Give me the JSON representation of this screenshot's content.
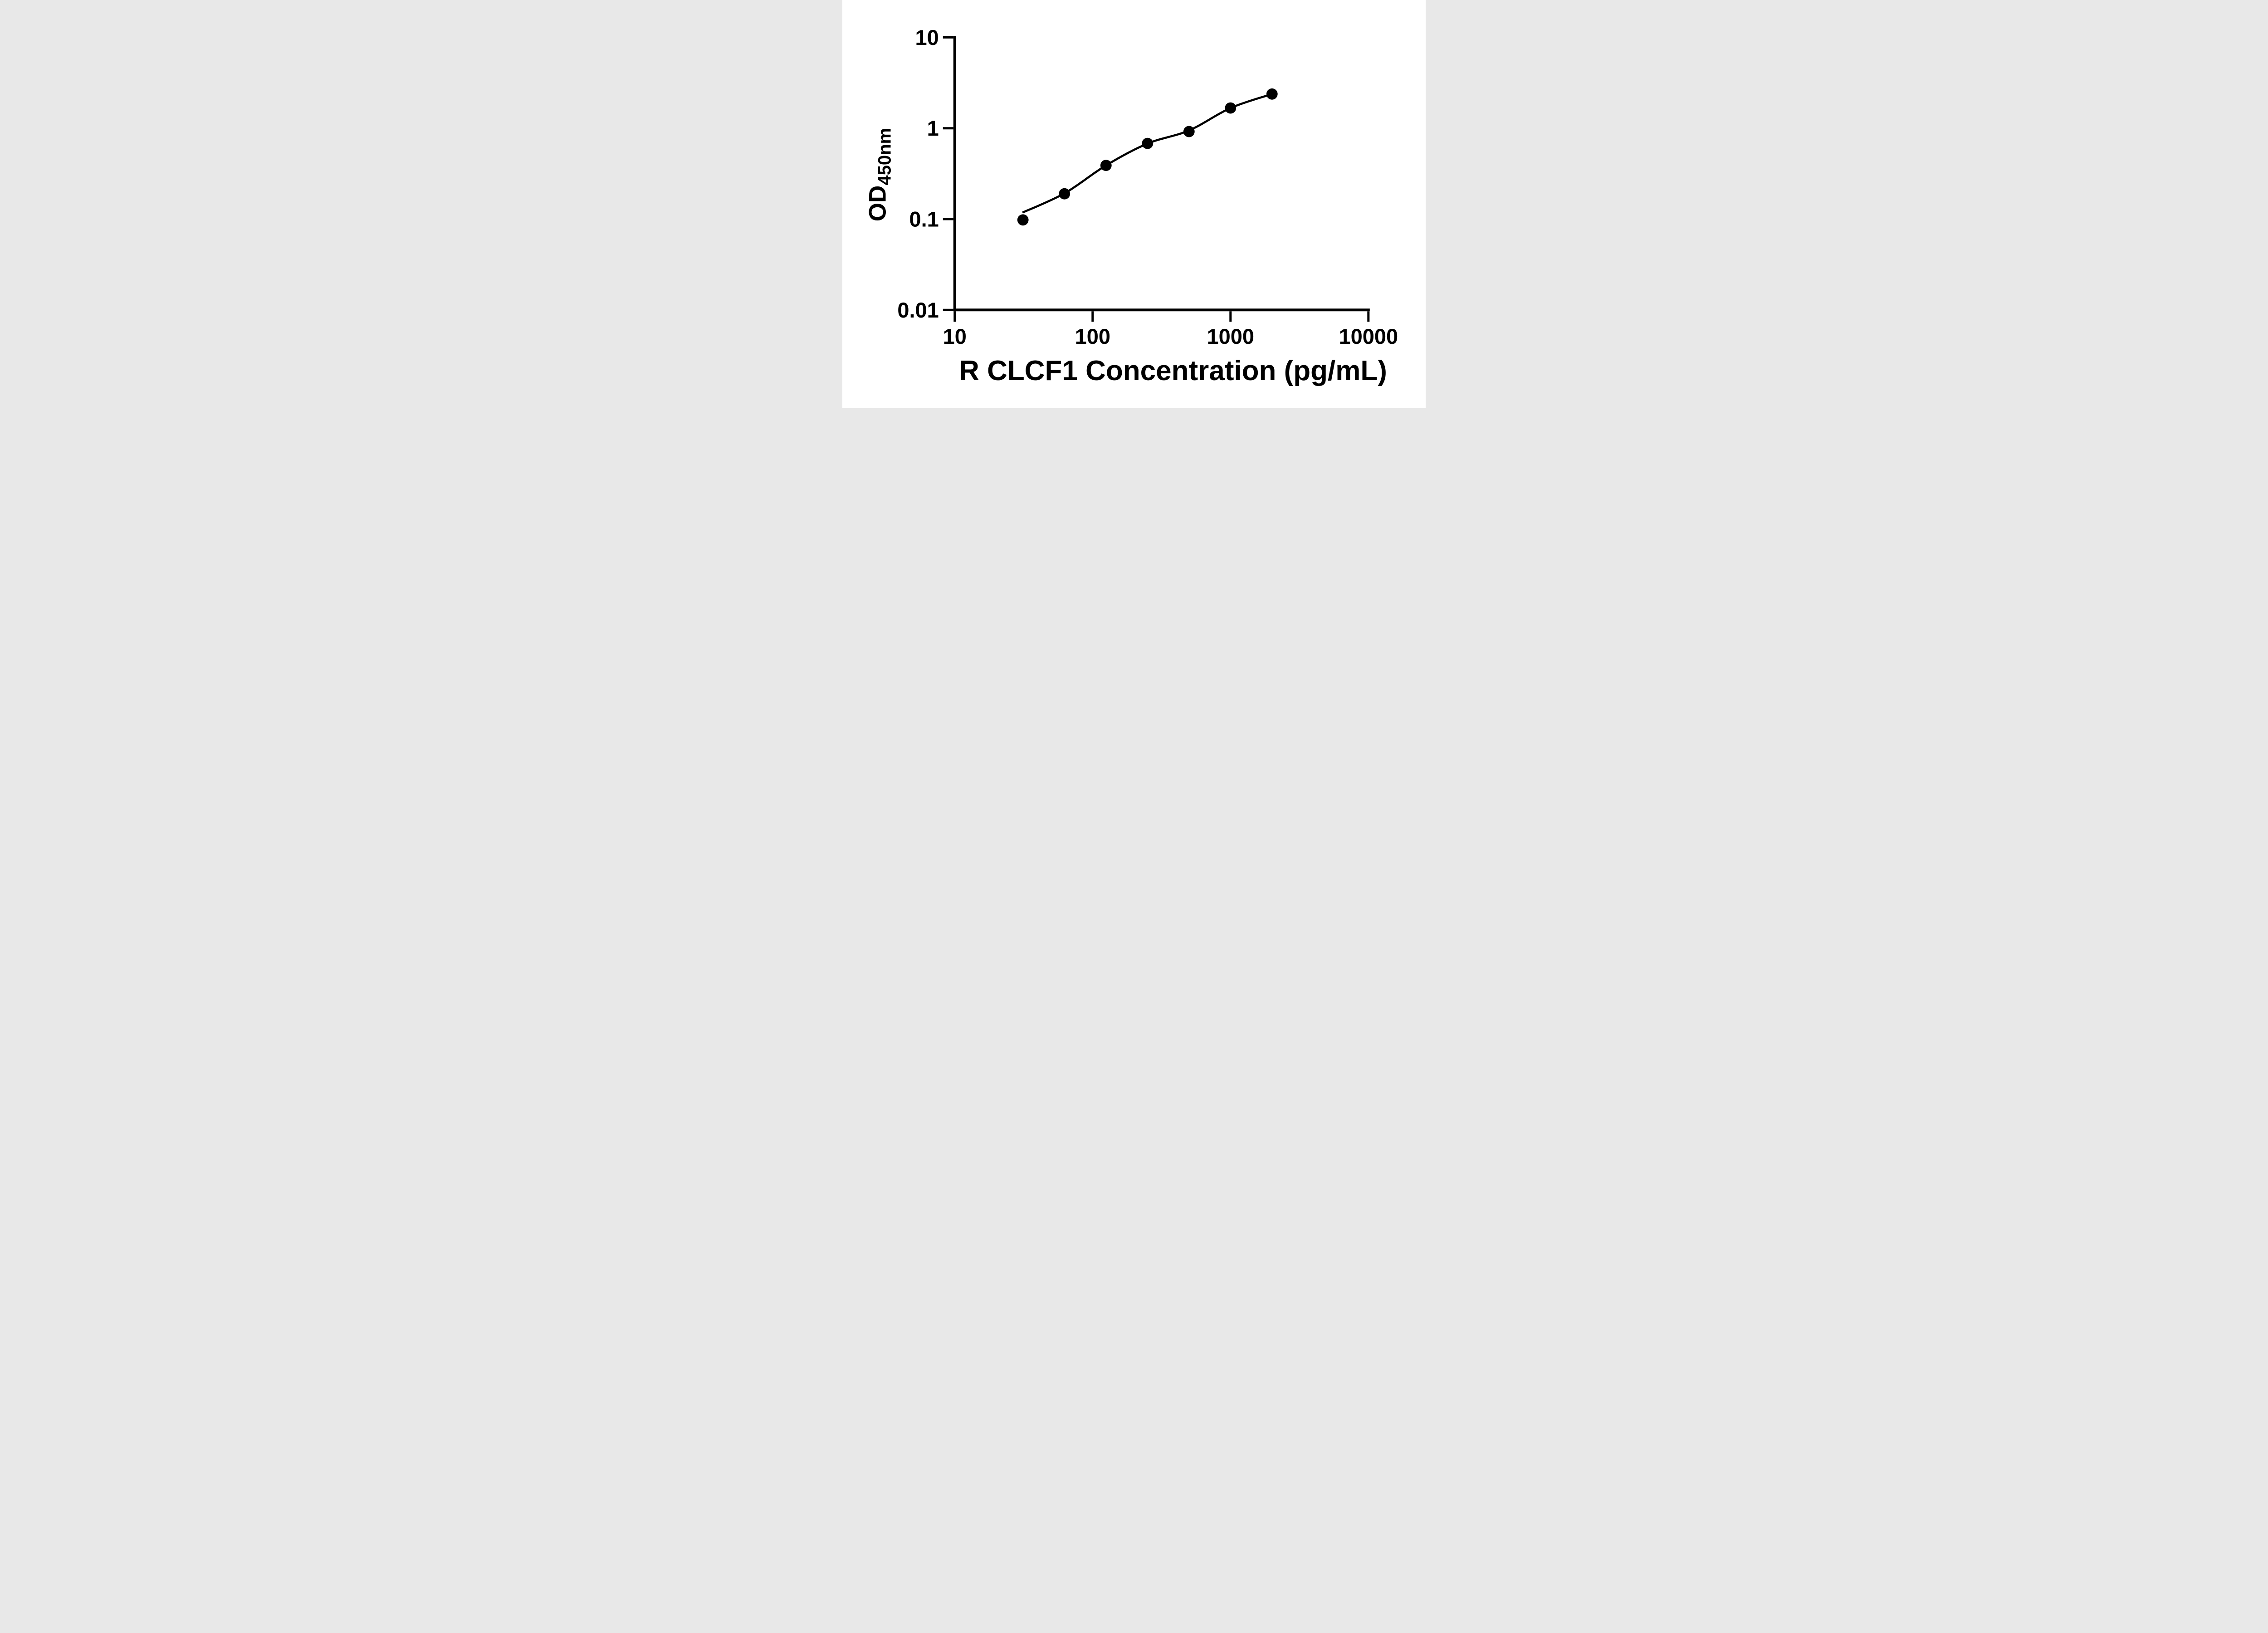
{
  "figure": {
    "background_color": "#ffffff",
    "ink_color": "#000000"
  },
  "chart_data": {
    "type": "scatter",
    "title": "",
    "xlabel": "R CLCF1 Concentration (pg/mL)",
    "ylabel_main": "OD",
    "ylabel_sub": "450nm",
    "x_scale": "log10",
    "y_scale": "log10",
    "xlim": [
      10,
      10000
    ],
    "ylim": [
      0.01,
      10
    ],
    "grid": false,
    "legend": "none",
    "x_ticks": [
      {
        "value": 10,
        "label": "10"
      },
      {
        "value": 100,
        "label": "100"
      },
      {
        "value": 1000,
        "label": "1000"
      },
      {
        "value": 10000,
        "label": "10000"
      }
    ],
    "y_ticks": [
      {
        "value": 10,
        "label": "10"
      },
      {
        "value": 1,
        "label": "1"
      },
      {
        "value": 0.1,
        "label": "0.1"
      },
      {
        "value": 0.01,
        "label": "0.01"
      }
    ],
    "series": [
      {
        "name": "standard-points",
        "marker": "filled-circle",
        "color": "#000000",
        "points": [
          {
            "x": 31.25,
            "y": 0.098
          },
          {
            "x": 62.5,
            "y": 0.19
          },
          {
            "x": 125,
            "y": 0.39
          },
          {
            "x": 250,
            "y": 0.68
          },
          {
            "x": 500,
            "y": 0.92
          },
          {
            "x": 1000,
            "y": 1.67
          },
          {
            "x": 2000,
            "y": 2.38
          }
        ]
      }
    ],
    "fit_curve": {
      "name": "fitted-standard-curve",
      "color": "#000000",
      "points": [
        {
          "x": 31,
          "y": 0.118
        },
        {
          "x": 62.5,
          "y": 0.192
        },
        {
          "x": 125,
          "y": 0.39
        },
        {
          "x": 250,
          "y": 0.678
        },
        {
          "x": 500,
          "y": 0.945
        },
        {
          "x": 1000,
          "y": 1.67
        },
        {
          "x": 2000,
          "y": 2.38
        }
      ]
    }
  }
}
